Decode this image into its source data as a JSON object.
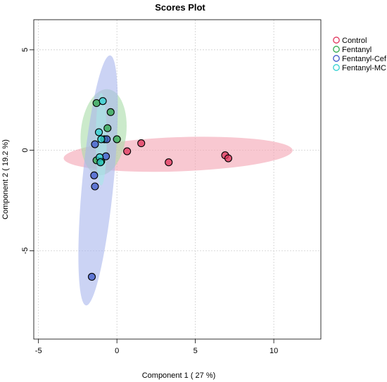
{
  "chart_data": {
    "type": "scatter",
    "title": "Scores Plot",
    "xlabel": "Component 1 ( 27 %)",
    "ylabel": "Component 2 ( 19.2 %)",
    "xlim": [
      -5.3,
      13.0
    ],
    "ylim": [
      -9.4,
      6.5
    ],
    "xticks": [
      -5,
      0,
      5,
      10
    ],
    "yticks": [
      5,
      0,
      -5
    ],
    "grid": true,
    "grid_style": "dotted",
    "legend_position": "top-right",
    "series": [
      {
        "name": "Control",
        "color": "#e0335a",
        "ellipse_fill": "#f4a3b3",
        "points": [
          [
            0.65,
            -0.05
          ],
          [
            1.55,
            0.35
          ],
          [
            3.3,
            -0.6
          ],
          [
            6.9,
            -0.25
          ],
          [
            7.1,
            -0.4
          ]
        ],
        "ellipse": {
          "cx": 3.9,
          "cy": -0.2,
          "rx": 7.3,
          "ry": 0.85,
          "angle": -2.0
        }
      },
      {
        "name": "Fentanyl",
        "color": "#2ea84b",
        "ellipse_fill": "#a8dca8",
        "points": [
          [
            -1.3,
            2.35
          ],
          [
            -0.4,
            1.9
          ],
          [
            -0.6,
            1.1
          ],
          [
            0.0,
            0.55
          ],
          [
            -0.8,
            0.55
          ],
          [
            -1.3,
            -0.5
          ],
          [
            -1.0,
            -0.55
          ]
        ],
        "ellipse": {
          "cx": -0.85,
          "cy": 0.9,
          "rx": 1.45,
          "ry": 2.15,
          "angle": 6.0
        }
      },
      {
        "name": "Fentanyl-Cef",
        "color": "#3b57c9",
        "ellipse_fill": "#a9b5ec",
        "points": [
          [
            -1.4,
            0.3
          ],
          [
            -0.65,
            0.55
          ],
          [
            -0.7,
            -0.3
          ],
          [
            -1.45,
            -1.25
          ],
          [
            -1.4,
            -1.8
          ],
          [
            -1.6,
            -6.3
          ]
        ],
        "ellipse": {
          "cx": -1.2,
          "cy": -1.5,
          "rx": 1.0,
          "ry": 6.25,
          "angle": 5.5
        }
      },
      {
        "name": "Fentanyl-MC",
        "color": "#2fcfd0",
        "ellipse_fill": "#a8e8e8",
        "points": [
          [
            -0.9,
            2.45
          ],
          [
            -1.15,
            0.9
          ],
          [
            -1.0,
            0.55
          ],
          [
            -1.1,
            -0.35
          ],
          [
            -1.05,
            -0.6
          ]
        ],
        "ellipse": {
          "cx": -1.0,
          "cy": 0.55,
          "rx": 0.35,
          "ry": 2.3,
          "angle": 0.0
        }
      }
    ]
  }
}
